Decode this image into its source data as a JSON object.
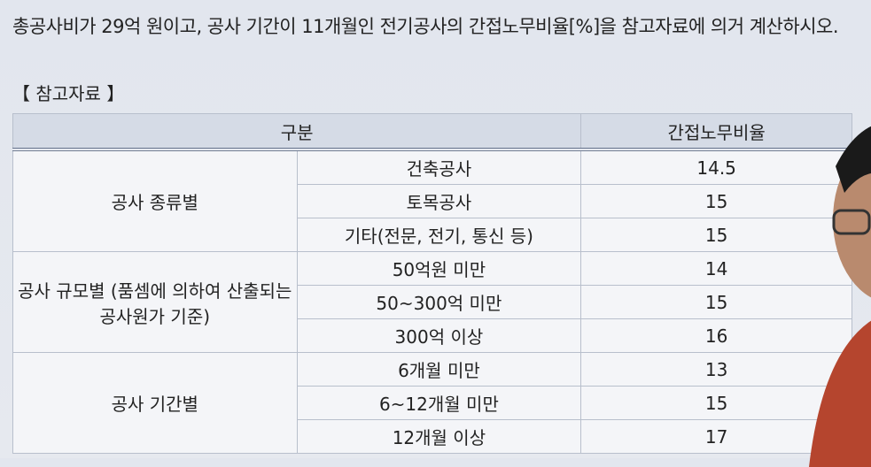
{
  "question": "총공사비가 29억 원이고, 공사 기간이 11개월인 전기공사의 간접노무비율[%]을 참고자료에 의거 계산하시오.",
  "reference_label": "【 참고자료 】",
  "table": {
    "headers": [
      "구분",
      "간접노무비율"
    ],
    "groups": [
      {
        "name": "공사 종류별",
        "rows": [
          [
            "건축공사",
            "14.5"
          ],
          [
            "토목공사",
            "15"
          ],
          [
            "기타(전문, 전기, 통신 등)",
            "15"
          ]
        ]
      },
      {
        "name": "공사 규모별 (품셈에 의하여 산출되는 공사원가 기준)",
        "rows": [
          [
            "50억원 미만",
            "14"
          ],
          [
            "50~300억 미만",
            "15"
          ],
          [
            "300억 이상",
            "16"
          ]
        ]
      },
      {
        "name": "공사 기간별",
        "rows": [
          [
            "6개월 미만",
            "13"
          ],
          [
            "6~12개월 미만",
            "15"
          ],
          [
            "12개월 이상",
            "17"
          ]
        ]
      }
    ]
  }
}
